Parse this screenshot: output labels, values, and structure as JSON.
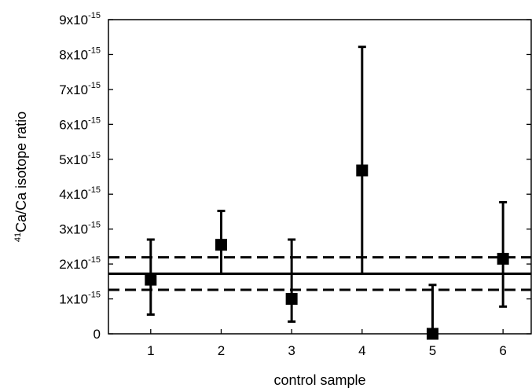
{
  "chart_data": {
    "type": "scatter",
    "title": "",
    "xlabel": "control sample",
    "ylabel": {
      "sup": "41",
      "text": "Ca/Ca isotope ratio"
    },
    "xlim": [
      0.4,
      6.4
    ],
    "ylim": [
      0,
      9e-15
    ],
    "x_ticks": [
      {
        "value": 1,
        "label": "1"
      },
      {
        "value": 2,
        "label": "2"
      },
      {
        "value": 3,
        "label": "3"
      },
      {
        "value": 4,
        "label": "4"
      },
      {
        "value": 5,
        "label": "5"
      },
      {
        "value": 6,
        "label": "6"
      }
    ],
    "y_ticks": [
      {
        "value": 0,
        "mantissa": "0",
        "exp": ""
      },
      {
        "value": 1e-15,
        "mantissa": "1x10",
        "exp": "-15"
      },
      {
        "value": 2e-15,
        "mantissa": "2x10",
        "exp": "-15"
      },
      {
        "value": 3e-15,
        "mantissa": "3x10",
        "exp": "-15"
      },
      {
        "value": 4e-15,
        "mantissa": "4x10",
        "exp": "-15"
      },
      {
        "value": 5e-15,
        "mantissa": "5x10",
        "exp": "-15"
      },
      {
        "value": 6e-15,
        "mantissa": "6x10",
        "exp": "-15"
      },
      {
        "value": 7e-15,
        "mantissa": "7x10",
        "exp": "-15"
      },
      {
        "value": 8e-15,
        "mantissa": "8x10",
        "exp": "-15"
      },
      {
        "value": 9e-15,
        "mantissa": "9x10",
        "exp": "-15"
      }
    ],
    "points": [
      {
        "x": 1,
        "y": 1.55e-15,
        "err_low": 5.5e-16,
        "err_high": 2.7e-15
      },
      {
        "x": 2,
        "y": 2.55e-15,
        "err_low": 1.72e-15,
        "err_high": 3.52e-15
      },
      {
        "x": 3,
        "y": 1e-15,
        "err_low": 3.5e-16,
        "err_high": 2.7e-15
      },
      {
        "x": 4,
        "y": 4.68e-15,
        "err_low": 1.72e-15,
        "err_high": 8.22e-15
      },
      {
        "x": 5,
        "y": 0.0,
        "err_low": 0.0,
        "err_high": 1.4e-15
      },
      {
        "x": 6,
        "y": 2.15e-15,
        "err_low": 7.8e-16,
        "err_high": 3.77e-15
      }
    ],
    "mean_line": 1.72e-15,
    "band_lines": [
      2.19e-15,
      1.26e-15
    ],
    "grid": false,
    "legend": "none",
    "colors": {
      "ink": "#000000",
      "background": "#ffffff"
    }
  }
}
